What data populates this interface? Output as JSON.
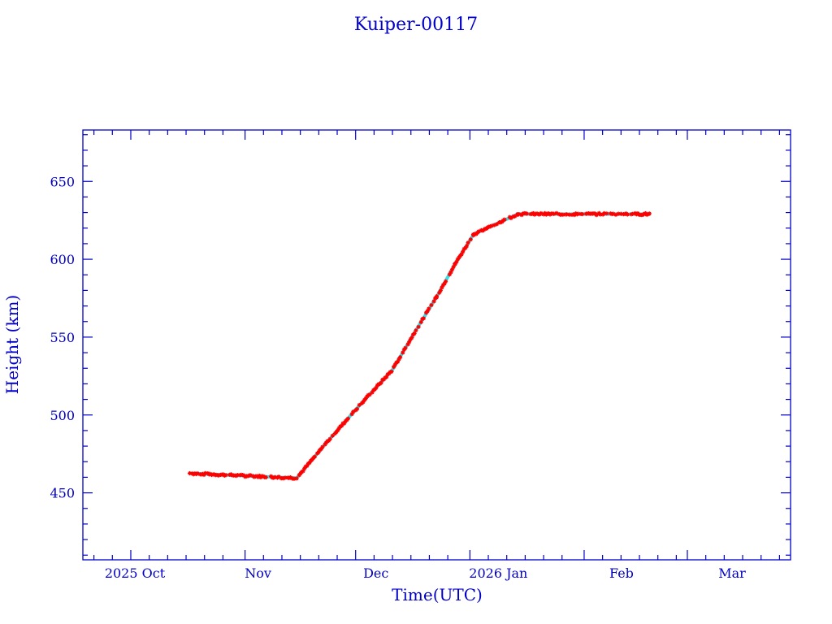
{
  "chart_data": {
    "type": "line",
    "title": "Kuiper-00117",
    "xlabel": "Time(UTC)",
    "ylabel": "Height (km)",
    "xlim": [
      "2025-09-18",
      "2026-03-29"
    ],
    "ylim": [
      407,
      683
    ],
    "yticks": [
      450,
      500,
      550,
      600,
      650
    ],
    "xtick_labels": [
      {
        "date": "2025-10-01",
        "label": "2025 Oct"
      },
      {
        "date": "2025-11-01",
        "label": "Nov"
      },
      {
        "date": "2025-12-01",
        "label": "Dec"
      },
      {
        "date": "2026-01-01",
        "label": "2026 Jan"
      },
      {
        "date": "2026-02-01",
        "label": "Feb"
      },
      {
        "date": "2026-03-01",
        "label": "Mar"
      }
    ],
    "series": [
      {
        "name": "Height",
        "marker_color": "#ff0000",
        "line_color": "#33e0e8",
        "x": [
          "2025-10-17",
          "2025-11-15",
          "2025-11-23",
          "2025-12-02",
          "2025-12-11",
          "2025-12-17",
          "2025-12-23",
          "2025-12-28",
          "2026-01-02",
          "2026-01-14",
          "2026-02-19"
        ],
        "y": [
          462.5,
          459.5,
          482,
          506,
          529,
          553,
          576,
          597,
          616,
          629,
          629
        ]
      }
    ],
    "grid": false,
    "axis_color": "#0000c8"
  }
}
